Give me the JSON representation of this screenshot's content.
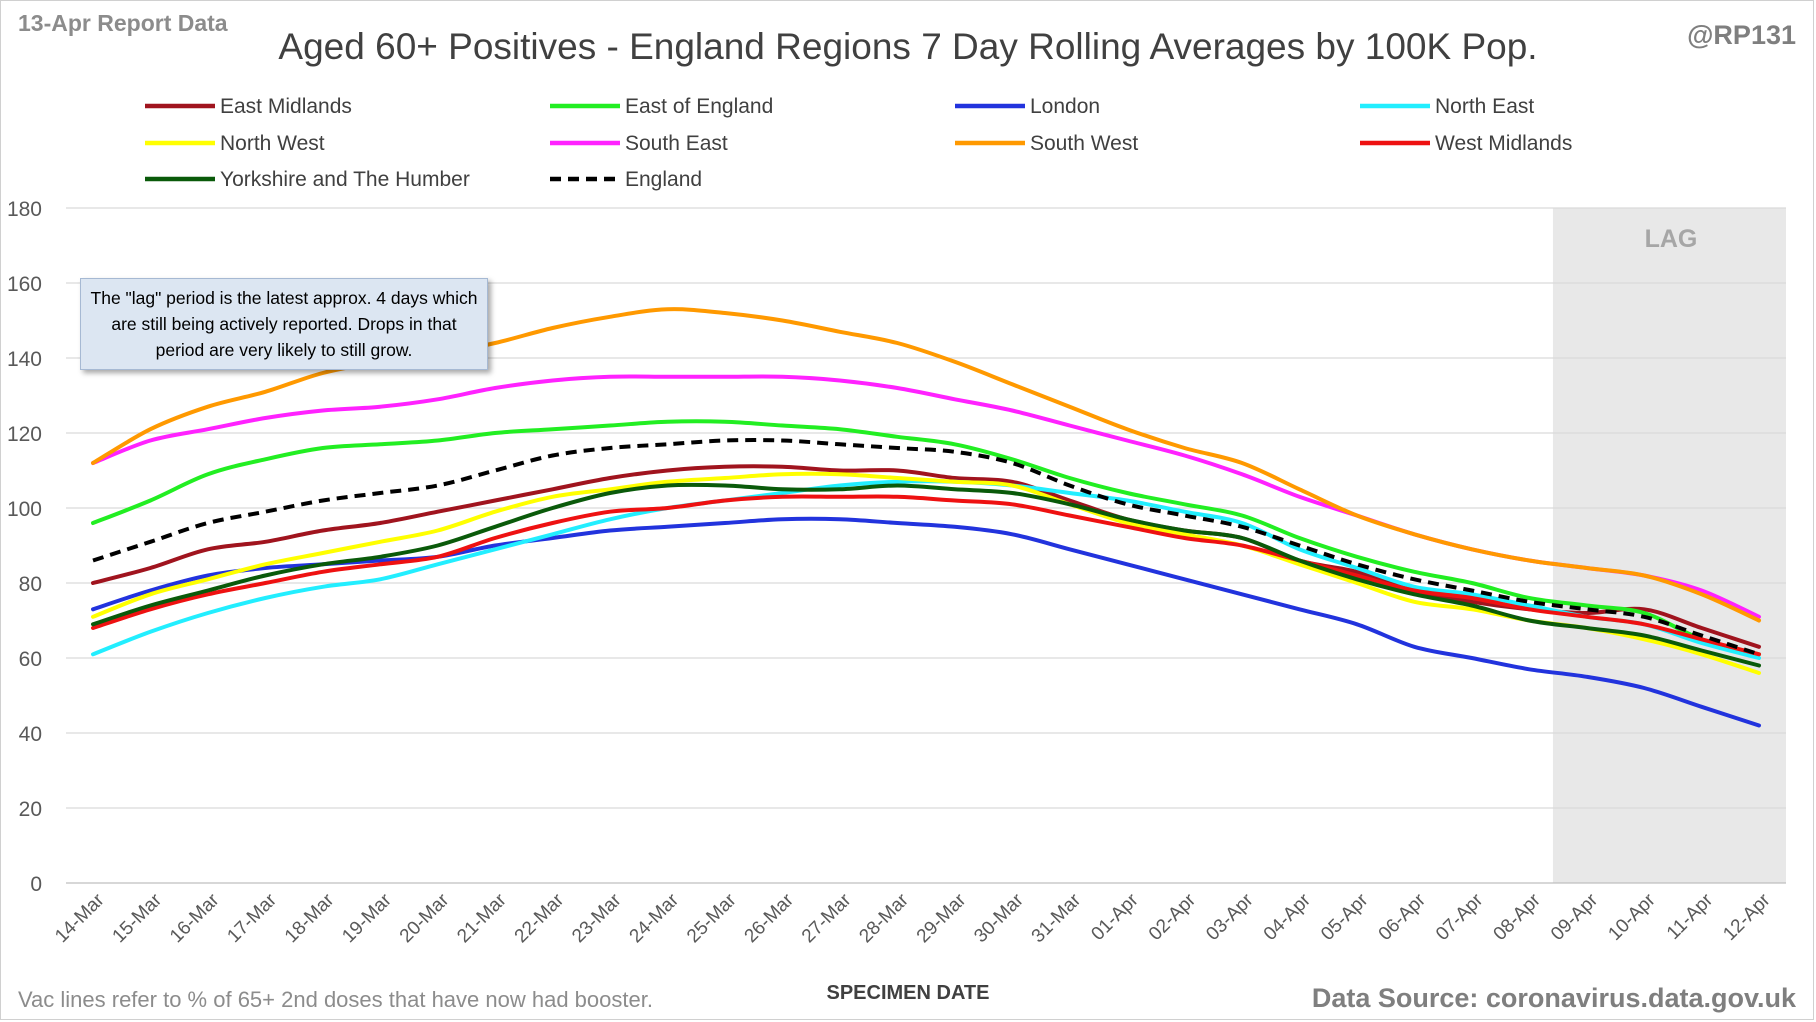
{
  "header": {
    "report_label": "13-Apr Report Data",
    "handle": "@RP131",
    "title": "Aged 60+ Positives - England Regions 7 Day Rolling Averages by 100K Pop."
  },
  "footer": {
    "vac_note": "Vac lines refer to % of 65+ 2nd doses that have now had booster.",
    "source": "Data Source: coronavirus.data.gov.uk"
  },
  "annotation": {
    "note": "The \"lag\" period is the latest approx. 4 days which are still being actively reported. Drops in that period are very likely to still grow.",
    "lag_label": "LAG"
  },
  "chart_data": {
    "type": "line",
    "xlabel": "SPECIMEN DATE",
    "ylabel": "",
    "ylim": [
      0,
      180
    ],
    "ytick_step": 20,
    "yticks": [
      "0",
      "20",
      "40",
      "60",
      "80",
      "100",
      "120",
      "140",
      "160",
      "180"
    ],
    "grid": true,
    "legend_position": "top",
    "lag_start": "08-Apr",
    "lag_end": "12-Apr",
    "x": [
      "14-Mar",
      "15-Mar",
      "16-Mar",
      "17-Mar",
      "18-Mar",
      "19-Mar",
      "20-Mar",
      "21-Mar",
      "22-Mar",
      "23-Mar",
      "24-Mar",
      "25-Mar",
      "26-Mar",
      "27-Mar",
      "28-Mar",
      "29-Mar",
      "30-Mar",
      "31-Mar",
      "01-Apr",
      "02-Apr",
      "03-Apr",
      "04-Apr",
      "05-Apr",
      "06-Apr",
      "07-Apr",
      "08-Apr",
      "09-Apr",
      "10-Apr",
      "11-Apr",
      "12-Apr"
    ],
    "series": [
      {
        "name": "East Midlands",
        "color": "#a0141e",
        "dash": false,
        "values": [
          80,
          84,
          89,
          91,
          94,
          96,
          99,
          102,
          105,
          108,
          110,
          111,
          111,
          110,
          110,
          108,
          107,
          102,
          97,
          94,
          92,
          86,
          83,
          78,
          75,
          73,
          72,
          73,
          68,
          63
        ]
      },
      {
        "name": "East of England",
        "color": "#22ee22",
        "dash": false,
        "values": [
          96,
          102,
          109,
          113,
          116,
          117,
          118,
          120,
          121,
          122,
          123,
          123,
          122,
          121,
          119,
          117,
          113,
          108,
          104,
          101,
          98,
          92,
          87,
          83,
          80,
          76,
          74,
          72,
          65,
          61
        ]
      },
      {
        "name": "London",
        "color": "#2233dd",
        "dash": false,
        "values": [
          73,
          78,
          82,
          84,
          85,
          86,
          87,
          90,
          92,
          94,
          95,
          96,
          97,
          97,
          96,
          95,
          93,
          89,
          85,
          81,
          77,
          73,
          69,
          63,
          60,
          57,
          55,
          52,
          47,
          42
        ]
      },
      {
        "name": "North East",
        "color": "#22eeff",
        "dash": false,
        "values": [
          61,
          67,
          72,
          76,
          79,
          81,
          85,
          89,
          93,
          97,
          100,
          102,
          104,
          106,
          107,
          107,
          106,
          104,
          102,
          99,
          96,
          89,
          84,
          79,
          77,
          74,
          71,
          69,
          64,
          60
        ]
      },
      {
        "name": "North West",
        "color": "#ffff00",
        "dash": false,
        "values": [
          71,
          77,
          81,
          85,
          88,
          91,
          94,
          99,
          103,
          105,
          107,
          108,
          109,
          109,
          108,
          107,
          106,
          101,
          96,
          93,
          90,
          85,
          80,
          75,
          73,
          70,
          68,
          65,
          61,
          56
        ]
      },
      {
        "name": "South East",
        "color": "#ff22ff",
        "dash": false,
        "values": [
          112,
          118,
          121,
          124,
          126,
          127,
          129,
          132,
          134,
          135,
          135,
          135,
          135,
          134,
          132,
          129,
          126,
          122,
          118,
          114,
          109,
          103,
          98,
          93,
          89,
          86,
          84,
          82,
          78,
          71
        ]
      },
      {
        "name": "South West",
        "color": "#ff9900",
        "dash": false,
        "values": [
          112,
          121,
          127,
          131,
          136,
          139,
          141,
          144,
          148,
          151,
          153,
          152,
          150,
          147,
          144,
          139,
          133,
          127,
          121,
          116,
          112,
          105,
          98,
          93,
          89,
          86,
          84,
          82,
          77,
          70
        ]
      },
      {
        "name": "West Midlands",
        "color": "#ee1111",
        "dash": false,
        "values": [
          68,
          73,
          77,
          80,
          83,
          85,
          87,
          92,
          96,
          99,
          100,
          102,
          103,
          103,
          103,
          102,
          101,
          98,
          95,
          92,
          90,
          86,
          82,
          78,
          76,
          73,
          71,
          69,
          65,
          61
        ]
      },
      {
        "name": "Yorkshire and The Humber",
        "color": "#0a5a0a",
        "dash": false,
        "values": [
          69,
          74,
          78,
          82,
          85,
          87,
          90,
          95,
          100,
          104,
          106,
          106,
          105,
          105,
          106,
          105,
          104,
          101,
          97,
          94,
          92,
          86,
          81,
          77,
          74,
          70,
          68,
          66,
          62,
          58
        ]
      },
      {
        "name": "England",
        "color": "#000000",
        "dash": true,
        "values": [
          86,
          91,
          96,
          99,
          102,
          104,
          106,
          110,
          114,
          116,
          117,
          118,
          118,
          117,
          116,
          115,
          112,
          106,
          101,
          98,
          95,
          90,
          85,
          81,
          78,
          75,
          73,
          71,
          66,
          61
        ]
      }
    ]
  }
}
